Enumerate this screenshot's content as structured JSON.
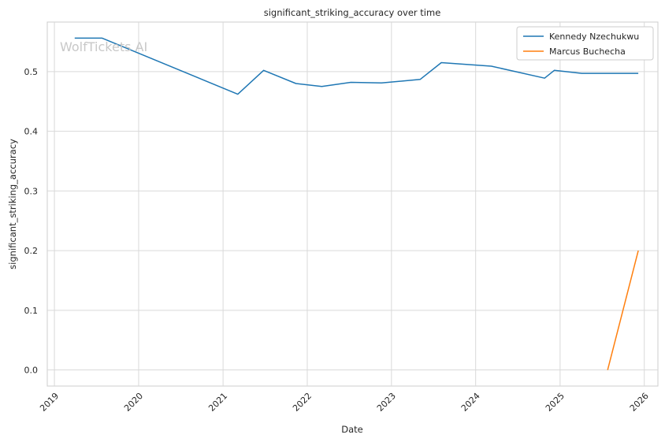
{
  "watermark": "WolfTickets AI",
  "chart_data": {
    "type": "line",
    "title": "significant_striking_accuracy over time",
    "xlabel": "Date",
    "ylabel": "significant_striking_accuracy",
    "xlim": [
      "2018-12-01",
      "2026-03-01"
    ],
    "ylim": [
      -0.027,
      0.583
    ],
    "x_ticks": [
      "2019",
      "2020",
      "2021",
      "2022",
      "2023",
      "2024",
      "2025",
      "2026"
    ],
    "y_ticks": [
      "0.0",
      "0.1",
      "0.2",
      "0.3",
      "0.4",
      "0.5"
    ],
    "grid": true,
    "legend_position": "top-right",
    "series": [
      {
        "name": "Kennedy Nzechukwu",
        "color": "#1f77b4",
        "points": [
          {
            "x": "2019-03-30",
            "y": 0.556
          },
          {
            "x": "2019-07-27",
            "y": 0.556
          },
          {
            "x": "2021-03-06",
            "y": 0.462
          },
          {
            "x": "2021-06-26",
            "y": 0.502
          },
          {
            "x": "2021-11-13",
            "y": 0.48
          },
          {
            "x": "2022-03-05",
            "y": 0.475
          },
          {
            "x": "2022-07-09",
            "y": 0.482
          },
          {
            "x": "2022-11-19",
            "y": 0.481
          },
          {
            "x": "2023-05-06",
            "y": 0.487
          },
          {
            "x": "2023-08-05",
            "y": 0.515
          },
          {
            "x": "2024-03-09",
            "y": 0.509
          },
          {
            "x": "2024-10-26",
            "y": 0.489
          },
          {
            "x": "2024-12-07",
            "y": 0.502
          },
          {
            "x": "2025-04-05",
            "y": 0.497
          },
          {
            "x": "2025-12-06",
            "y": 0.497
          }
        ]
      },
      {
        "name": "Marcus Buchecha",
        "color": "#ff7f0e",
        "points": [
          {
            "x": "2025-07-26",
            "y": 0.0
          },
          {
            "x": "2025-12-06",
            "y": 0.2
          }
        ]
      }
    ]
  }
}
